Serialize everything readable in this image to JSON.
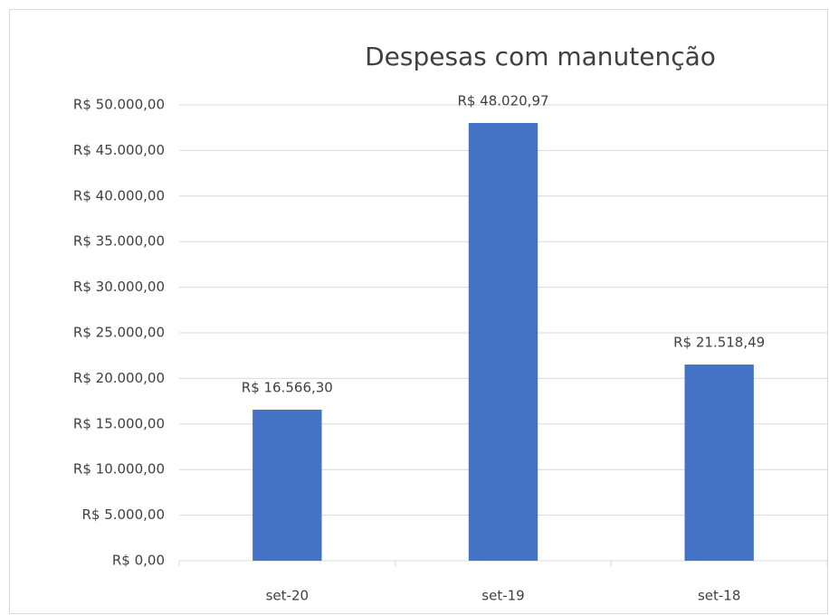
{
  "chart_data": {
    "type": "bar",
    "title": "Despesas com manutenção",
    "categories": [
      "set-20",
      "set-19",
      "set-18"
    ],
    "values": [
      16566.3,
      48020.97,
      21518.49
    ],
    "value_labels": [
      "R$ 16.566,30",
      "R$ 48.020,97",
      "R$ 21.518,49"
    ],
    "color": "#4472c4",
    "ylim": [
      0,
      50000
    ],
    "yticks": [
      {
        "value": 0,
        "label": "R$ 0,00"
      },
      {
        "value": 5000,
        "label": "R$ 5.000,00"
      },
      {
        "value": 10000,
        "label": "R$ 10.000,00"
      },
      {
        "value": 15000,
        "label": "R$ 15.000,00"
      },
      {
        "value": 20000,
        "label": "R$ 20.000,00"
      },
      {
        "value": 25000,
        "label": "R$ 25.000,00"
      },
      {
        "value": 30000,
        "label": "R$ 30.000,00"
      },
      {
        "value": 35000,
        "label": "R$ 35.000,00"
      },
      {
        "value": 40000,
        "label": "R$ 40.000,00"
      },
      {
        "value": 45000,
        "label": "R$ 45.000,00"
      },
      {
        "value": 50000,
        "label": "R$ 50.000,00"
      }
    ],
    "grid": true
  }
}
